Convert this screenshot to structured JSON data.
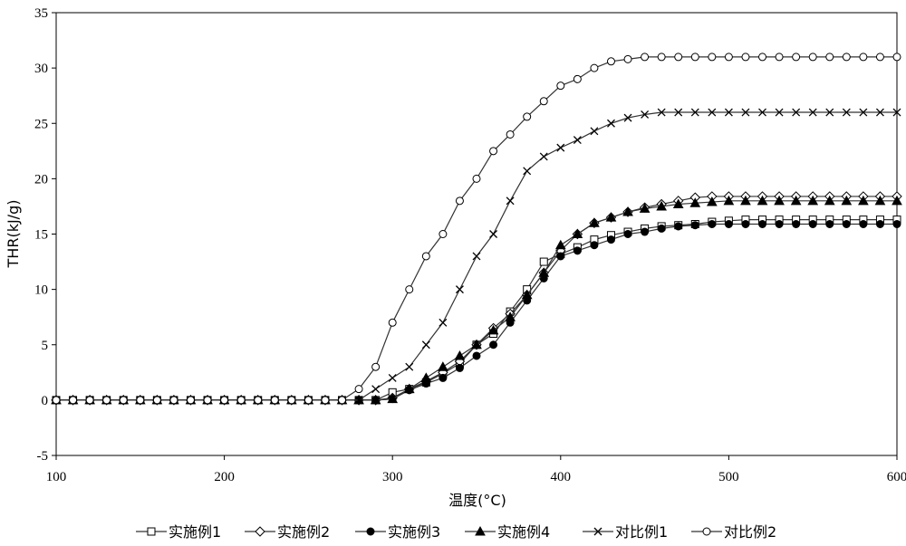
{
  "chart_data": {
    "type": "line",
    "xlabel": "温度(°C)",
    "ylabel": "THR(kJ/g)",
    "xlim": [
      100,
      600
    ],
    "ylim": [
      -5,
      35
    ],
    "x_ticks": [
      100,
      200,
      300,
      400,
      500,
      600
    ],
    "y_ticks": [
      -5,
      0,
      5,
      10,
      15,
      20,
      25,
      30,
      35
    ],
    "grid": false,
    "legend_position": "bottom",
    "series": [
      {
        "name": "实施例1",
        "marker": "square-open",
        "x": [
          100,
          110,
          120,
          130,
          140,
          150,
          160,
          170,
          180,
          190,
          200,
          210,
          220,
          230,
          240,
          250,
          260,
          270,
          280,
          290,
          300,
          310,
          320,
          330,
          340,
          350,
          360,
          370,
          380,
          390,
          400,
          410,
          420,
          430,
          440,
          450,
          460,
          470,
          480,
          490,
          500,
          510,
          520,
          530,
          540,
          550,
          560,
          570,
          580,
          590,
          600
        ],
        "y": [
          0,
          0,
          0,
          0,
          0,
          0,
          0,
          0,
          0,
          0,
          0,
          0,
          0,
          0,
          0,
          0,
          0,
          0,
          0,
          0,
          0.7,
          1,
          1.6,
          2.4,
          3.3,
          5,
          6,
          8,
          10,
          12.5,
          13.2,
          13.8,
          14.5,
          14.9,
          15.2,
          15.5,
          15.7,
          15.8,
          15.9,
          16.1,
          16.2,
          16.3,
          16.3,
          16.3,
          16.3,
          16.3,
          16.3,
          16.3,
          16.3,
          16.3,
          16.3
        ]
      },
      {
        "name": "实施例2",
        "marker": "diamond-open",
        "x": [
          100,
          110,
          120,
          130,
          140,
          150,
          160,
          170,
          180,
          190,
          200,
          210,
          220,
          230,
          240,
          250,
          260,
          270,
          280,
          290,
          300,
          310,
          320,
          330,
          340,
          350,
          360,
          370,
          380,
          390,
          400,
          410,
          420,
          430,
          440,
          450,
          460,
          470,
          480,
          490,
          500,
          510,
          520,
          530,
          540,
          550,
          560,
          570,
          580,
          590,
          600
        ],
        "y": [
          0,
          0,
          0,
          0,
          0,
          0,
          0,
          0,
          0,
          0,
          0,
          0,
          0,
          0,
          0,
          0,
          0,
          0,
          0,
          0,
          0.2,
          1,
          1.7,
          2.5,
          3.5,
          5,
          6.5,
          7.8,
          9.5,
          11.5,
          13.5,
          15,
          16,
          16.5,
          17,
          17.4,
          17.7,
          18,
          18.3,
          18.4,
          18.4,
          18.4,
          18.4,
          18.4,
          18.4,
          18.4,
          18.4,
          18.4,
          18.4,
          18.4,
          18.4
        ]
      },
      {
        "name": "实施例3",
        "marker": "circle-filled",
        "x": [
          100,
          110,
          120,
          130,
          140,
          150,
          160,
          170,
          180,
          190,
          200,
          210,
          220,
          230,
          240,
          250,
          260,
          270,
          280,
          290,
          300,
          310,
          320,
          330,
          340,
          350,
          360,
          370,
          380,
          390,
          400,
          410,
          420,
          430,
          440,
          450,
          460,
          470,
          480,
          490,
          500,
          510,
          520,
          530,
          540,
          550,
          560,
          570,
          580,
          590,
          600
        ],
        "y": [
          0,
          0,
          0,
          0,
          0,
          0,
          0,
          0,
          0,
          0,
          0,
          0,
          0,
          0,
          0,
          0,
          0,
          0,
          0,
          0,
          0.1,
          0.9,
          1.5,
          2,
          2.9,
          4,
          5,
          7,
          9,
          11,
          13,
          13.5,
          14,
          14.5,
          15,
          15.2,
          15.5,
          15.7,
          15.8,
          15.9,
          15.9,
          15.9,
          15.9,
          15.9,
          15.9,
          15.9,
          15.9,
          15.9,
          15.9,
          15.9,
          15.9
        ]
      },
      {
        "name": "实施例4",
        "marker": "triangle-filled",
        "x": [
          100,
          110,
          120,
          130,
          140,
          150,
          160,
          170,
          180,
          190,
          200,
          210,
          220,
          230,
          240,
          250,
          260,
          270,
          280,
          290,
          300,
          310,
          320,
          330,
          340,
          350,
          360,
          370,
          380,
          390,
          400,
          410,
          420,
          430,
          440,
          450,
          460,
          470,
          480,
          490,
          500,
          510,
          520,
          530,
          540,
          550,
          560,
          570,
          580,
          590,
          600
        ],
        "y": [
          0,
          0,
          0,
          0,
          0,
          0,
          0,
          0,
          0,
          0,
          0,
          0,
          0,
          0,
          0,
          0,
          0,
          0,
          0,
          0,
          0.1,
          1,
          2,
          3,
          4,
          5,
          6.3,
          7.5,
          9.5,
          11.5,
          14,
          15,
          16,
          16.5,
          17,
          17.3,
          17.5,
          17.7,
          17.8,
          17.9,
          18,
          18,
          18,
          18,
          18,
          18,
          18,
          18,
          18,
          18,
          18
        ]
      },
      {
        "name": "对比例1",
        "marker": "cross",
        "x": [
          100,
          110,
          120,
          130,
          140,
          150,
          160,
          170,
          180,
          190,
          200,
          210,
          220,
          230,
          240,
          250,
          260,
          270,
          280,
          290,
          300,
          310,
          320,
          330,
          340,
          350,
          360,
          370,
          380,
          390,
          400,
          410,
          420,
          430,
          440,
          450,
          460,
          470,
          480,
          490,
          500,
          510,
          520,
          530,
          540,
          550,
          560,
          570,
          580,
          590,
          600
        ],
        "y": [
          0,
          0,
          0,
          0,
          0,
          0,
          0,
          0,
          0,
          0,
          0,
          0,
          0,
          0,
          0,
          0,
          0,
          0,
          0,
          1,
          2,
          3,
          5,
          7,
          10,
          13,
          15,
          18,
          20.7,
          22,
          22.8,
          23.5,
          24.3,
          25,
          25.5,
          25.8,
          26,
          26,
          26,
          26,
          26,
          26,
          26,
          26,
          26,
          26,
          26,
          26,
          26,
          26,
          26
        ]
      },
      {
        "name": "对比例2",
        "marker": "circle-open",
        "x": [
          100,
          110,
          120,
          130,
          140,
          150,
          160,
          170,
          180,
          190,
          200,
          210,
          220,
          230,
          240,
          250,
          260,
          270,
          280,
          290,
          300,
          310,
          320,
          330,
          340,
          350,
          360,
          370,
          380,
          390,
          400,
          410,
          420,
          430,
          440,
          450,
          460,
          470,
          480,
          490,
          500,
          510,
          520,
          530,
          540,
          550,
          560,
          570,
          580,
          590,
          600
        ],
        "y": [
          0,
          0,
          0,
          0,
          0,
          0,
          0,
          0,
          0,
          0,
          0,
          0,
          0,
          0,
          0,
          0,
          0,
          0,
          1,
          3,
          7,
          10,
          13,
          15,
          18,
          20,
          22.5,
          24,
          25.6,
          27,
          28.4,
          29,
          30,
          30.6,
          30.8,
          31,
          31,
          31,
          31,
          31,
          31,
          31,
          31,
          31,
          31,
          31,
          31,
          31,
          31,
          31,
          31
        ]
      }
    ]
  }
}
